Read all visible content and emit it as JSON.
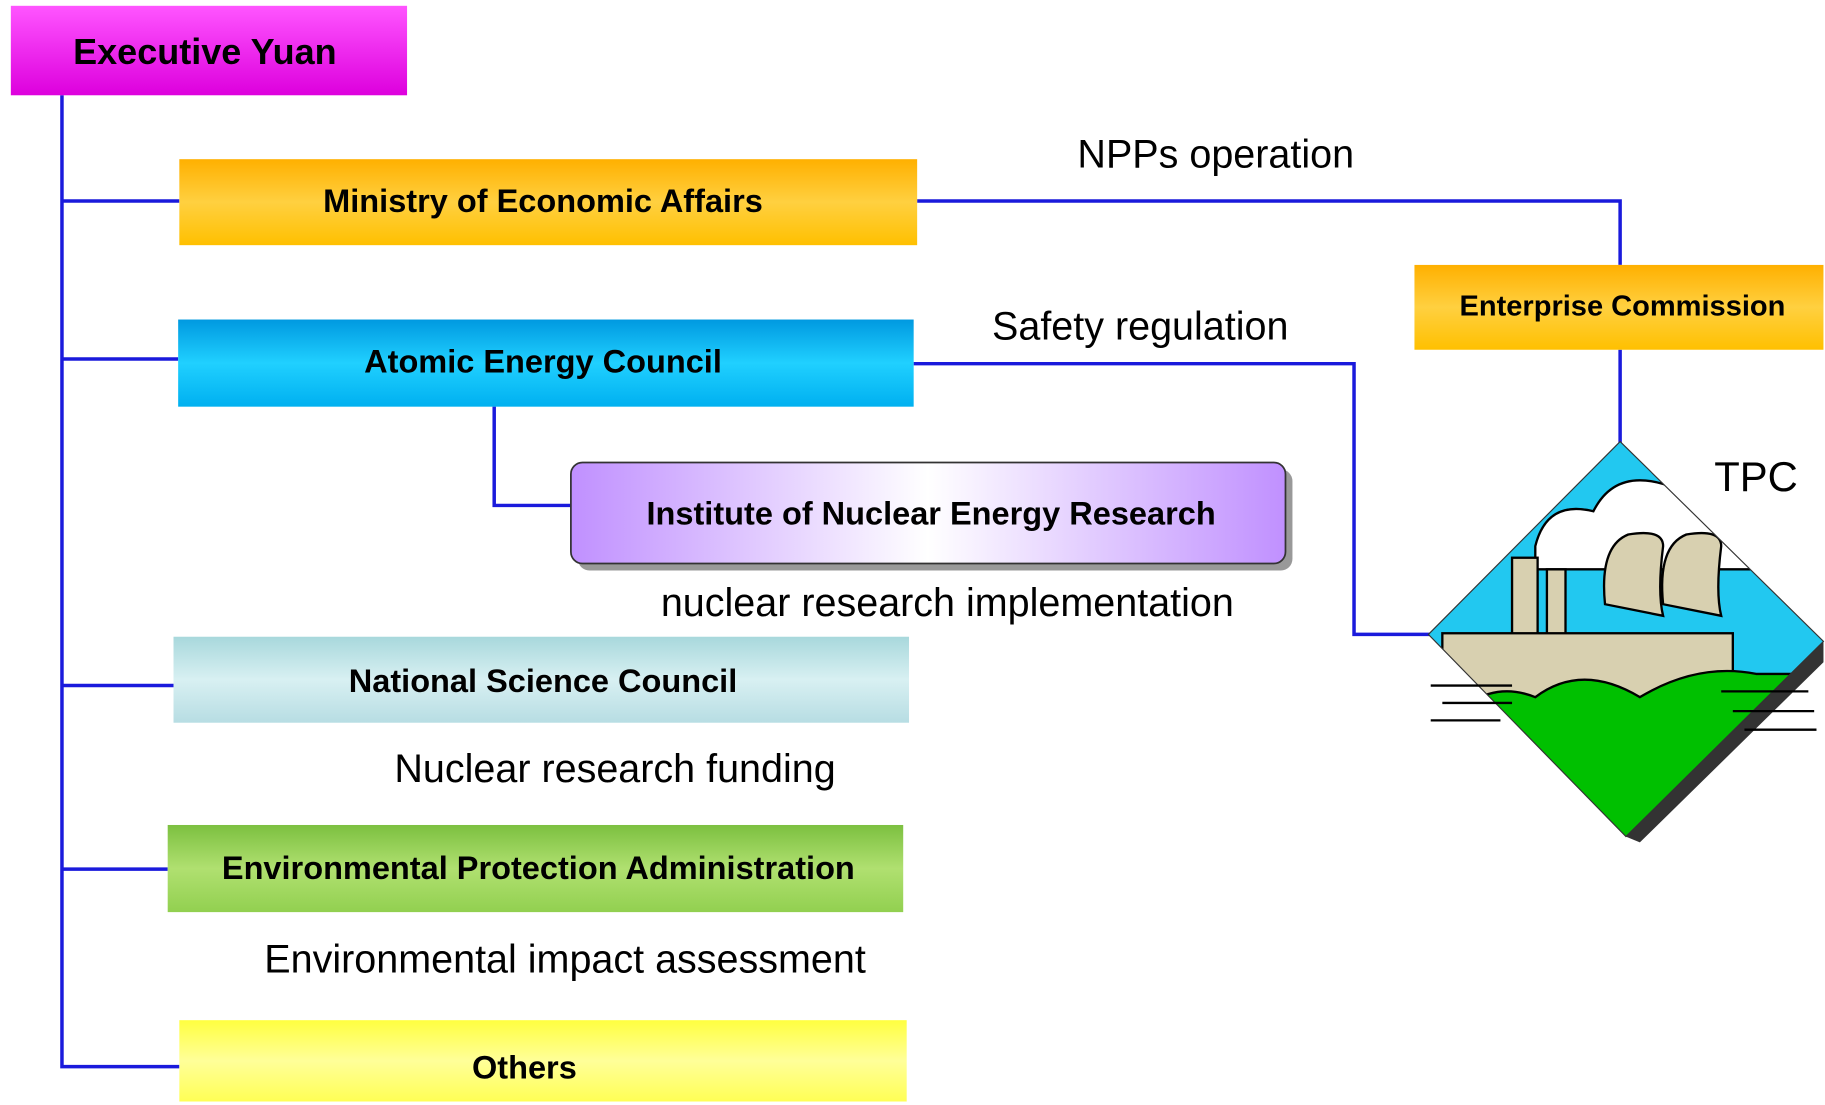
{
  "nodes": [
    {
      "label": "Executive Yuan"
    },
    {
      "label": "Ministry of Economic Affairs"
    },
    {
      "label": "Atomic Energy Council"
    },
    {
      "label": "Institute of Nuclear Energy Research"
    },
    {
      "label": "National Science Council"
    },
    {
      "label": "Environmental Protection Administration"
    },
    {
      "label": "Others"
    },
    {
      "label": "Enterprise Commission"
    },
    {
      "label": "TPC"
    }
  ],
  "annotations": [
    {
      "text": "NPPs operation"
    },
    {
      "text": "Safety regulation"
    },
    {
      "text": "nuclear research implementation"
    },
    {
      "text": "Nuclear research funding"
    },
    {
      "text": "Environmental impact assessment"
    }
  ]
}
